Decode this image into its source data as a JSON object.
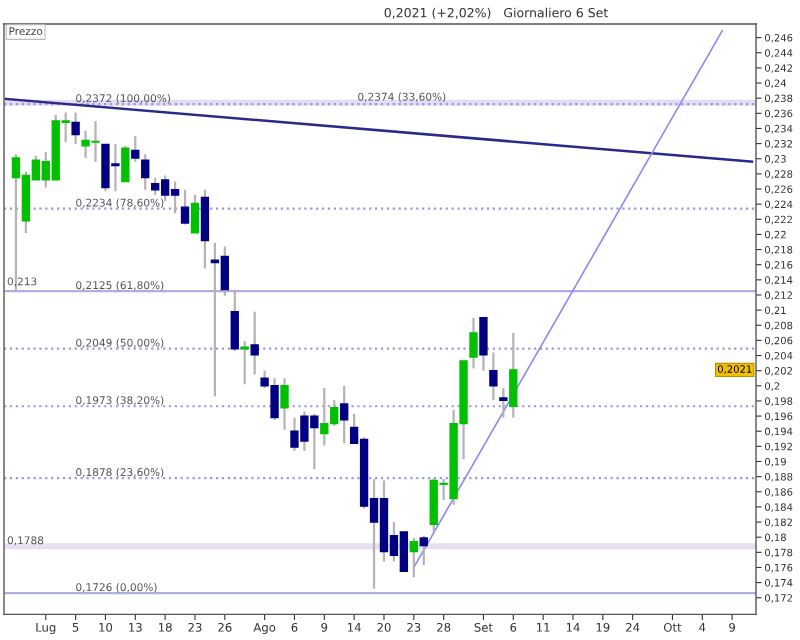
{
  "chart_data": {
    "type": "candlestick",
    "title": "0,2021 (+2,02%)   Giornaliero 6 Set",
    "categories": [
      null,
      null,
      null,
      null,
      "Lug",
      null,
      null,
      "5",
      null,
      null,
      "10",
      null,
      null,
      "13",
      null,
      null,
      "18",
      null,
      null,
      "23",
      null,
      null,
      "26",
      null,
      null,
      null,
      "Ago",
      null,
      null,
      "6",
      null,
      null,
      "9",
      null,
      null,
      "14",
      null,
      null,
      "20",
      null,
      null,
      "23",
      null,
      null,
      "28",
      null,
      null,
      null,
      "Set",
      null,
      null,
      "6",
      null,
      null,
      "11",
      null,
      null,
      "14",
      null,
      null,
      "19",
      null,
      null,
      "24",
      null,
      null,
      null,
      "Ott",
      null,
      null,
      "4",
      null,
      null,
      "9",
      null,
      null
    ],
    "ohlc": [
      null,
      [
        0.2275,
        0.2306,
        0.2124,
        0.2301
      ],
      [
        0.2218,
        0.2283,
        0.2202,
        0.2278
      ],
      [
        0.2272,
        0.2304,
        0.2272,
        0.2298
      ],
      [
        0.2272,
        0.2309,
        0.2262,
        0.2296
      ],
      [
        0.2272,
        0.2358,
        0.2272,
        0.235
      ],
      [
        0.2348,
        0.2361,
        0.2322,
        0.235
      ],
      [
        0.2348,
        0.2361,
        0.2319,
        0.2332
      ],
      [
        0.2317,
        0.2337,
        0.2301,
        0.2324
      ],
      [
        0.2322,
        0.235,
        0.2296,
        0.2323
      ],
      [
        0.2319,
        0.2319,
        0.2257,
        0.2262
      ],
      [
        0.2293,
        0.2319,
        0.2257,
        0.2291
      ],
      [
        0.227,
        0.2317,
        0.227,
        0.2314
      ],
      [
        0.2311,
        0.233,
        0.2296,
        0.2301
      ],
      [
        0.2298,
        0.2306,
        0.2259,
        0.2275
      ],
      [
        0.2267,
        0.2275,
        0.2252,
        0.2259
      ],
      [
        0.2272,
        0.2278,
        0.2244,
        0.2252
      ],
      [
        0.2259,
        0.227,
        0.2228,
        0.2252
      ],
      [
        0.2236,
        0.2259,
        0.2213,
        0.2215
      ],
      [
        0.2202,
        0.2252,
        0.2202,
        0.2241
      ],
      [
        0.2249,
        0.2259,
        0.2155,
        0.2192
      ],
      [
        0.2166,
        0.2189,
        0.1986,
        0.2163
      ],
      [
        0.2171,
        0.2184,
        0.2119,
        0.2127
      ],
      [
        0.2098,
        0.2127,
        0.2046,
        0.2049
      ],
      [
        0.2049,
        0.2059,
        0.2002,
        0.2051
      ],
      [
        0.2054,
        0.2098,
        0.2015,
        0.2041
      ],
      [
        0.201,
        0.202,
        0.1997,
        0.2
      ],
      [
        0.2,
        0.201,
        0.1955,
        0.1958
      ],
      [
        0.1971,
        0.201,
        0.1942,
        0.2
      ],
      [
        0.194,
        0.1958,
        0.1914,
        0.1919
      ],
      [
        0.196,
        0.1966,
        0.1914,
        0.1927
      ],
      [
        0.196,
        0.1963,
        0.189,
        0.1945
      ],
      [
        0.1937,
        0.1997,
        0.1921,
        0.195
      ],
      [
        0.195,
        0.1981,
        0.1947,
        0.1971
      ],
      [
        0.1976,
        0.2,
        0.1924,
        0.1955
      ],
      [
        0.1945,
        0.1963,
        0.1924,
        0.1924
      ],
      [
        0.1929,
        0.1932,
        0.1838,
        0.1841
      ],
      [
        0.1851,
        0.1877,
        0.1732,
        0.182
      ],
      [
        0.1851,
        0.1875,
        0.1768,
        0.1781
      ],
      [
        0.1802,
        0.182,
        0.1768,
        0.1776
      ],
      [
        0.1807,
        0.1807,
        0.1755,
        0.1755
      ],
      [
        0.1781,
        0.1799,
        0.1747,
        0.1794
      ],
      [
        0.1799,
        0.1802,
        0.1763,
        0.1789
      ],
      [
        0.1817,
        0.1877,
        0.1807,
        0.1875
      ],
      [
        0.187,
        0.1877,
        0.1849,
        0.1871
      ],
      [
        0.1851,
        0.1968,
        0.1843,
        0.195
      ],
      [
        0.195,
        0.2033,
        0.1903,
        0.2033
      ],
      [
        0.2038,
        0.209,
        0.2023,
        0.207
      ],
      [
        0.209,
        0.209,
        0.202,
        0.2041
      ],
      [
        0.202,
        0.2044,
        0.1981,
        0.2
      ],
      [
        0.1984,
        0.1997,
        0.1958,
        0.1981
      ],
      [
        0.1973,
        0.207,
        0.1958,
        0.2021
      ],
      null,
      null,
      null,
      null,
      null,
      null,
      null,
      null,
      null,
      null,
      null,
      null,
      null,
      null,
      null,
      null,
      null,
      null,
      null,
      null,
      null,
      null,
      null,
      null
    ],
    "colors": [
      null,
      "#00c000",
      "#00c000",
      "#00c000",
      "#00c000",
      "#00c000",
      "#00c000",
      "#000080",
      "#00c000",
      "#00c000",
      "#000080",
      "#000080",
      "#00c000",
      "#000080",
      "#000080",
      "#000080",
      "#000080",
      "#000080",
      "#000080",
      "#00c000",
      "#000080",
      "#000080",
      "#000080",
      "#000080",
      "#00c000",
      "#000080",
      "#000080",
      "#000080",
      "#00c000",
      "#000080",
      "#000080",
      "#000080",
      "#00c000",
      "#00c000",
      "#000080",
      "#000080",
      "#000080",
      "#000080",
      "#000080",
      "#000080",
      "#000080",
      "#00c000",
      "#000080",
      "#00c000",
      "#00c000",
      "#00c000",
      "#00c000",
      "#00c000",
      "#000080",
      "#000080",
      "#000080",
      "#00c000",
      null,
      null,
      null,
      null,
      null,
      null,
      null,
      null,
      null,
      null,
      null,
      null,
      null,
      null,
      null,
      null,
      null,
      null,
      null,
      null,
      null,
      null,
      null,
      null
    ],
    "series": [
      {
        "type": "line",
        "color": "#2a2a8a",
        "values": [
          0.2379,
          null,
          null,
          null,
          null,
          null,
          null,
          null,
          null,
          null,
          null,
          null,
          null,
          null,
          null,
          null,
          null,
          null,
          null,
          null,
          null,
          null,
          null,
          null,
          null,
          null,
          null,
          null,
          null,
          null,
          null,
          null,
          null,
          null,
          null,
          null,
          null,
          null,
          null,
          null,
          null,
          null,
          null,
          null,
          null,
          null,
          null,
          null,
          null,
          null,
          null,
          null,
          null,
          null,
          null,
          null,
          null,
          null,
          null,
          null,
          null,
          null,
          null,
          null,
          null,
          null,
          null,
          null,
          null,
          null,
          null,
          null,
          null,
          null,
          null,
          0.2296
        ]
      },
      {
        "type": "line",
        "color": "#8c8cf0",
        "values": [
          null,
          null,
          null,
          null,
          null,
          null,
          null,
          null,
          null,
          null,
          null,
          null,
          null,
          null,
          null,
          null,
          null,
          null,
          null,
          null,
          null,
          null,
          null,
          null,
          null,
          null,
          null,
          null,
          null,
          null,
          null,
          null,
          null,
          null,
          null,
          null,
          null,
          null,
          null,
          null,
          null,
          0.176,
          null,
          null,
          null,
          null,
          null,
          null,
          null,
          null,
          null,
          null,
          null,
          null,
          null,
          null,
          null,
          null,
          null,
          null,
          null,
          null,
          null,
          null,
          null,
          null,
          null,
          null,
          null,
          null,
          null,
          null,
          0.2469,
          null,
          null,
          null
        ]
      }
    ],
    "ylim": [
      0.1698,
      0.2478
    ],
    "yticks": [
      {
        "value": 0.172,
        "label": "0,172"
      },
      {
        "value": 0.174,
        "label": "0,174"
      },
      {
        "value": 0.176,
        "label": "0,176"
      },
      {
        "value": 0.178,
        "label": "0,178"
      },
      {
        "value": 0.18,
        "label": "0,18"
      },
      {
        "value": 0.182,
        "label": "0,182"
      },
      {
        "value": 0.184,
        "label": "0,184"
      },
      {
        "value": 0.186,
        "label": "0,186"
      },
      {
        "value": 0.188,
        "label": "0,188"
      },
      {
        "value": 0.19,
        "label": "0,19"
      },
      {
        "value": 0.192,
        "label": "0,192"
      },
      {
        "value": 0.194,
        "label": "0,194"
      },
      {
        "value": 0.196,
        "label": "0,196"
      },
      {
        "value": 0.198,
        "label": "0,198"
      },
      {
        "value": 0.2,
        "label": "0,2"
      },
      {
        "value": 0.202,
        "label": "0,202"
      },
      {
        "value": 0.204,
        "label": "0,204"
      },
      {
        "value": 0.206,
        "label": "0,206"
      },
      {
        "value": 0.208,
        "label": "0,208"
      },
      {
        "value": 0.21,
        "label": "0,21"
      },
      {
        "value": 0.212,
        "label": "0,212"
      },
      {
        "value": 0.214,
        "label": "0,214"
      },
      {
        "value": 0.216,
        "label": "0,216"
      },
      {
        "value": 0.218,
        "label": "0,218"
      },
      {
        "value": 0.22,
        "label": "0,22"
      },
      {
        "value": 0.222,
        "label": "0,222"
      },
      {
        "value": 0.224,
        "label": "0,224"
      },
      {
        "value": 0.226,
        "label": "0,226"
      },
      {
        "value": 0.228,
        "label": "0,228"
      },
      {
        "value": 0.23,
        "label": "0,23"
      },
      {
        "value": 0.232,
        "label": "0,232"
      },
      {
        "value": 0.234,
        "label": "0,234"
      },
      {
        "value": 0.236,
        "label": "0,236"
      },
      {
        "value": 0.238,
        "label": "0,238"
      },
      {
        "value": 0.24,
        "label": "0,24"
      },
      {
        "value": 0.242,
        "label": "0,242"
      },
      {
        "value": 0.244,
        "label": "0,244"
      },
      {
        "value": 0.246,
        "label": "0,246"
      }
    ],
    "ref_lines": [
      {
        "axis": "y",
        "value": 0.2374,
        "color": "#e4dcf2",
        "line_style": "solid"
      },
      {
        "axis": "y",
        "value": 0.2372,
        "label": "0,2372 (100,00%)",
        "color": "#9a9ae0",
        "line_style": "dotted"
      },
      {
        "axis": "y",
        "value": 0.2234,
        "label": "0,2234 (78,60%)",
        "color": "#9a9ae0",
        "line_style": "dotted"
      },
      {
        "axis": "y",
        "value": 0.2125,
        "label": "0,2125 (61,80%)",
        "color": "#b8a8e4",
        "line_style": "solid"
      },
      {
        "axis": "y",
        "value": 0.2049,
        "label": "0,2049 (50,00%)",
        "color": "#9a9ae0",
        "line_style": "dotted"
      },
      {
        "axis": "y",
        "value": 0.1973,
        "label": "0,1973 (38,20%)",
        "color": "#9a9ae0",
        "line_style": "dotted"
      },
      {
        "axis": "y",
        "value": 0.1878,
        "label": "0,1878 (23,60%)",
        "color": "#9a9ae0",
        "line_style": "dotted"
      },
      {
        "axis": "y",
        "value": 0.1788,
        "color": "#e8e0f2",
        "line_style": "solid"
      },
      {
        "axis": "y",
        "value": 0.1726,
        "label": "0,1726 (0,00%)",
        "color": "#b0b0dc",
        "line_style": "solid"
      }
    ],
    "annotations": [
      "Prezzo",
      "0,2021",
      {
        "text": "0,2374 (33,60%)",
        "y": 0.2374
      },
      {
        "text": "0,213",
        "y": 0.213
      },
      {
        "text": "0,1788",
        "y": 0.1788
      }
    ],
    "grid": false,
    "legend": false
  }
}
